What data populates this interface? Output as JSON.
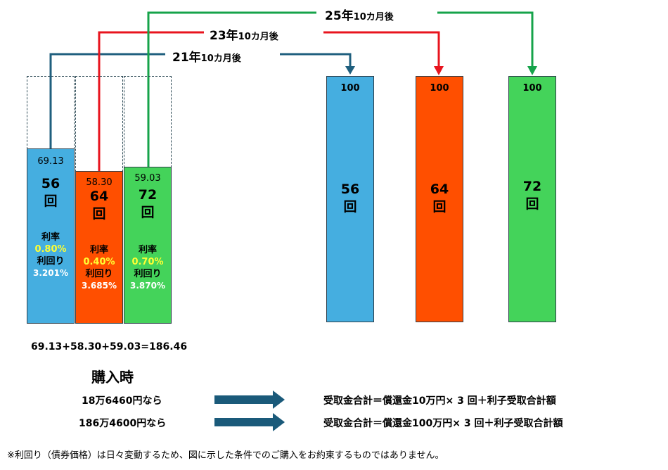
{
  "colors": {
    "blue": "#45aee0",
    "orange": "#ff4f00",
    "green": "#44d35a",
    "rate_text": "#ffff33"
  },
  "connectors": [
    {
      "years": "21年",
      "rest": "10カ月後",
      "color": "#1f5f7e"
    },
    {
      "years": "23年",
      "rest": "10カ月後",
      "color": "#e8141e"
    },
    {
      "years": "25年",
      "rest": "10カ月後",
      "color": "#16a34a"
    }
  ],
  "purchase_bars": [
    {
      "price": "69.13",
      "count": "56",
      "unit": "回",
      "rate_label": "利率",
      "rate": "0.80%",
      "yield_label": "利回り",
      "yield": "3.201%"
    },
    {
      "price": "58.30",
      "count": "64",
      "unit": "回",
      "rate_label": "利率",
      "rate": "0.40%",
      "yield_label": "利回り",
      "yield": "3.685%"
    },
    {
      "price": "59.03",
      "count": "72",
      "unit": "回",
      "rate_label": "利率",
      "rate": "0.70%",
      "yield_label": "利回り",
      "yield": "3.870%"
    }
  ],
  "redemption_bars": [
    {
      "value": "100",
      "count": "56",
      "unit": "回"
    },
    {
      "value": "100",
      "count": "64",
      "unit": "回"
    },
    {
      "value": "100",
      "count": "72",
      "unit": "回"
    }
  ],
  "sum_text": "69.13+58.30+59.03=186.46",
  "purchase_heading": "購入時",
  "rows": [
    {
      "amount": "18万6460円なら",
      "result": "受取金合計＝償還金10万円× 3 回＋利子受取合計額"
    },
    {
      "amount": "186万4600円なら",
      "result": "受取金合計＝償還金100万円× 3 回＋利子受取合計額"
    }
  ],
  "footnote": "※利回り（債券価格）は日々変動するため、図に示した条件でのご購入をお約束するものではありません。"
}
